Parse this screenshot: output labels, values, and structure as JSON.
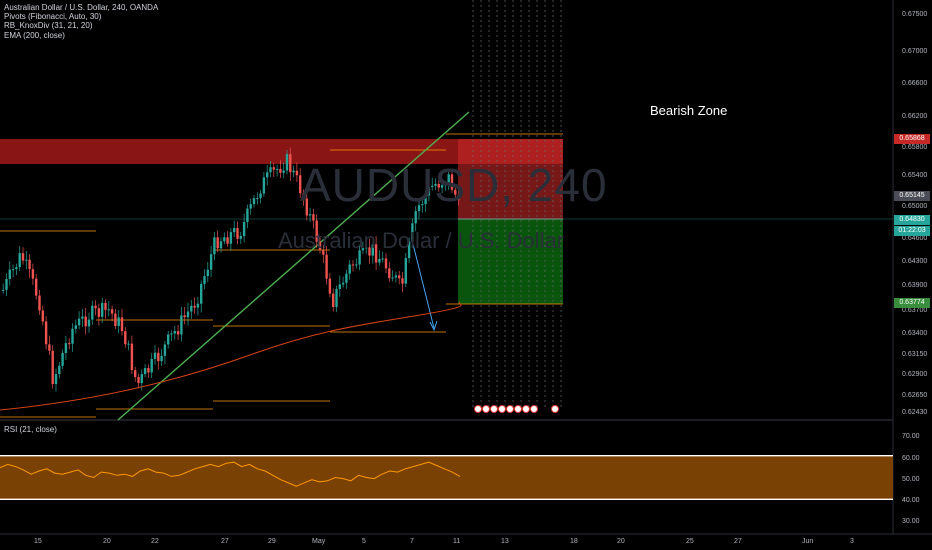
{
  "symbol_header": "Australian Dollar / U.S. Dollar, 240, OANDA",
  "indicators": [
    "Pivots (Fibonacci, Auto, 30)",
    "RB_KnoxDiv (31, 21, 20)",
    "EMA (200, close)"
  ],
  "watermark": {
    "ticker": "AUDUSD, 240",
    "name": "Australian Dollar / U.S. Dollar"
  },
  "zone_label": "Bearish Zone",
  "price_axis": {
    "ticks": [
      "0.67500",
      "0.67000",
      "0.66600",
      "0.66200",
      "0.65800",
      "0.65400",
      "0.65000",
      "0.64600",
      "0.64300",
      "0.63900",
      "0.63700",
      "0.63400",
      "0.63150",
      "0.62900",
      "0.62650",
      "0.62430"
    ],
    "tags": {
      "stop": "0.65868",
      "entry_high": "0.65145",
      "current": "0.64830",
      "countdown": "01:22:03",
      "target": "0.63774"
    }
  },
  "time_axis": [
    "15",
    "20",
    "22",
    "27",
    "29",
    "May",
    "5",
    "7",
    "11",
    "13",
    "18",
    "20",
    "25",
    "27",
    "Jun",
    "3"
  ],
  "rsi": {
    "label": "RSI (21, close)",
    "ticks": [
      "70.00",
      "60.00",
      "50.00",
      "40.00",
      "30.00"
    ],
    "upper": 70,
    "lower": 30,
    "values": [
      59,
      62,
      60,
      57,
      53,
      56,
      58,
      54,
      53,
      55,
      57,
      52,
      50,
      55,
      54,
      52,
      53,
      51,
      56,
      58,
      55,
      54,
      51,
      52,
      55,
      58,
      60,
      62,
      60,
      63,
      64,
      60,
      62,
      58,
      56,
      52,
      48,
      45,
      42,
      45,
      48,
      46,
      47,
      50,
      49,
      47,
      52,
      50,
      49,
      53,
      56,
      55,
      58,
      60,
      62,
      64,
      61,
      58,
      55,
      51
    ]
  },
  "colors": {
    "up": "#26a69a",
    "down": "#ef5350",
    "ema": "#d84315",
    "trend": "#4caf50",
    "pivot": "#ff9800",
    "rsi_band": "#7a4105",
    "rsi_line": "#ff9800",
    "resistance": "#b71c1c",
    "long_zone": "#0a5a0f"
  }
}
